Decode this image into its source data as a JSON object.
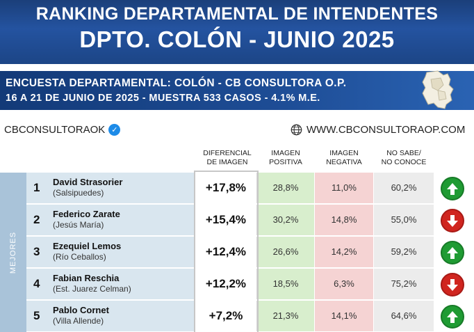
{
  "header": {
    "title_line1": "RANKING DEPARTAMENTAL DE INTENDENTES",
    "title_line2": "DPTO. COLÓN - JUNIO 2025"
  },
  "survey": {
    "line1": "ENCUESTA DEPARTAMENTAL: COLÓN - CB CONSULTORA O.P.",
    "line2": "16 A 21 DE JUNIO  DE 2025 - MUESTRA 533 CASOS - 4.1% M.E."
  },
  "brand": {
    "handle": "CBCONSULTORAOK",
    "website": "WWW.CBCONSULTORAOP.COM"
  },
  "columns": {
    "diff": [
      "DIFERENCIAL",
      "DE IMAGEN"
    ],
    "pos": [
      "IMAGEN",
      "POSITIVA"
    ],
    "neg": [
      "IMAGEN",
      "NEGATIVA"
    ],
    "ns": [
      "NO SABE/",
      "NO CONOCE"
    ]
  },
  "side_label": "MEJORES",
  "colors": {
    "banner": "#1f4a8f",
    "positive": "#d8eecd",
    "negative": "#f5d3d3",
    "up": "#1f9b33",
    "down": "#d0251f"
  },
  "rows": [
    {
      "rank": "1",
      "name": "David Strasorier",
      "place": "(Salsipuedes)",
      "diff": "+17,8%",
      "pos": "28,8%",
      "neg": "11,0%",
      "ns": "60,2%",
      "trend": "up"
    },
    {
      "rank": "2",
      "name": "Federico Zarate",
      "place": "(Jesús María)",
      "diff": "+15,4%",
      "pos": "30,2%",
      "neg": "14,8%",
      "ns": "55,0%",
      "trend": "down"
    },
    {
      "rank": "3",
      "name": "Ezequiel Lemos",
      "place": "(Río Ceballos)",
      "diff": "+12,4%",
      "pos": "26,6%",
      "neg": "14,2%",
      "ns": "59,2%",
      "trend": "up"
    },
    {
      "rank": "4",
      "name": "Fabian Reschia",
      "place": "(Est. Juarez Celman)",
      "diff": "+12,2%",
      "pos": "18,5%",
      "neg": "6,3%",
      "ns": "75,2%",
      "trend": "down"
    },
    {
      "rank": "5",
      "name": "Pablo Cornet",
      "place": "(Villa Allende)",
      "diff": "+7,2%",
      "pos": "21,3%",
      "neg": "14,1%",
      "ns": "64,6%",
      "trend": "up"
    }
  ]
}
